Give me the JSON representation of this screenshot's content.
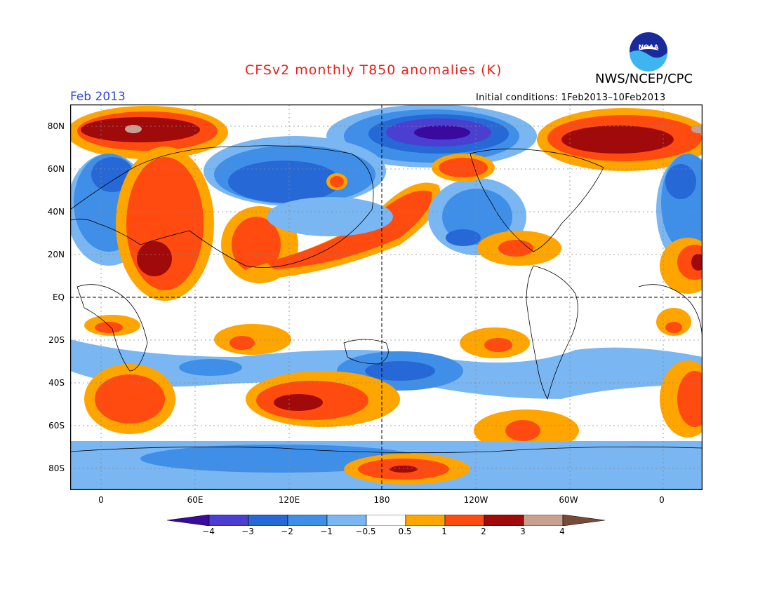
{
  "title": "CFSv2 monthly T850 anomalies (K)",
  "agency": "NWS/NCEP/CPC",
  "month": "Feb 2013",
  "initial_conditions": "Initial conditions: 1Feb2013–10Feb2013",
  "logo_text": "NOAA",
  "y_labels": [
    "80N",
    "60N",
    "40N",
    "20N",
    "EQ",
    "20S",
    "40S",
    "60S",
    "80S"
  ],
  "x_labels": [
    "0",
    "60E",
    "120E",
    "180",
    "120W",
    "60W",
    "0"
  ],
  "colorbar": {
    "labels": [
      "−4",
      "−3",
      "−2",
      "−1",
      "−0.5",
      "0.5",
      "1",
      "2",
      "3",
      "4"
    ],
    "colors": [
      "#3a0aa0",
      "#4a3fd0",
      "#2668d6",
      "#3f8fe8",
      "#79b6f2",
      "#ffffff",
      "#ffa500",
      "#ff4a10",
      "#a00a0a",
      "#c8a090",
      "#7a4a38"
    ]
  },
  "map_colors": {
    "cold4": "#3a0aa0",
    "cold3": "#4a3fd0",
    "cold2": "#2668d6",
    "cold1": "#3f8fe8",
    "cold05": "#79b6f2",
    "warm05": "#ffa500",
    "warm1": "#ff4a10",
    "warm2": "#a00a0a",
    "warm3": "#c8a090"
  }
}
